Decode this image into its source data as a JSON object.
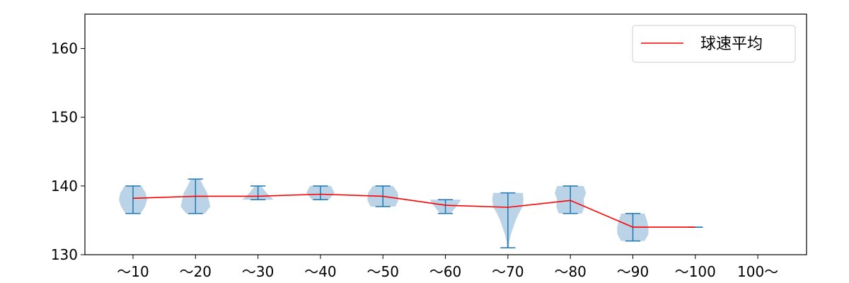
{
  "chart_data": {
    "type": "violin",
    "categories": [
      "〜10",
      "〜20",
      "〜30",
      "〜40",
      "〜50",
      "〜60",
      "〜70",
      "〜80",
      "〜90",
      "〜100",
      "100〜"
    ],
    "ylim": [
      130,
      165
    ],
    "yticks": [
      130,
      140,
      150,
      160
    ],
    "grid": false,
    "legend_position": "top-right",
    "series": [
      {
        "name": "球速平均",
        "kind": "line",
        "color": "#ff0000",
        "values": [
          138.2,
          138.5,
          138.5,
          138.8,
          138.5,
          137.2,
          136.9,
          137.9,
          134.0,
          134.0,
          null
        ]
      }
    ],
    "violins": [
      {
        "category": "〜10",
        "min": 136,
        "max": 140,
        "mean": 138.2,
        "width": 0.45,
        "shape": [
          0.55,
          0.85,
          1.0,
          0.9,
          0.6
        ]
      },
      {
        "category": "〜20",
        "min": 136,
        "max": 141,
        "mean": 138.5,
        "width": 0.5,
        "shape": [
          0.6,
          0.95,
          0.85,
          0.75,
          0.5,
          0.3
        ]
      },
      {
        "category": "〜30",
        "min": 138,
        "max": 140,
        "mean": 138.5,
        "width": 0.5,
        "shape": [
          1.0,
          0.55,
          0.2
        ]
      },
      {
        "category": "〜40",
        "min": 138,
        "max": 140,
        "mean": 138.8,
        "width": 0.45,
        "shape": [
          0.6,
          1.0,
          0.75
        ]
      },
      {
        "category": "〜50",
        "min": 137,
        "max": 140,
        "mean": 138.5,
        "width": 0.5,
        "shape": [
          0.8,
          1.0,
          0.95,
          0.65
        ]
      },
      {
        "category": "〜60",
        "min": 136,
        "max": 138,
        "mean": 137.2,
        "width": 0.5,
        "shape": [
          0.35,
          0.7,
          1.0
        ]
      },
      {
        "category": "〜70",
        "min": 131,
        "max": 139,
        "mean": 136.9,
        "width": 0.5,
        "shape": [
          0.05,
          0.1,
          0.2,
          0.35,
          0.5,
          0.7,
          0.95,
          1.0,
          0.95
        ]
      },
      {
        "category": "〜80",
        "min": 136,
        "max": 140,
        "mean": 137.9,
        "width": 0.5,
        "shape": [
          0.75,
          0.9,
          0.85,
          1.0,
          0.85
        ]
      },
      {
        "category": "〜90",
        "min": 132,
        "max": 136,
        "mean": 134.0,
        "width": 0.5,
        "shape": [
          0.75,
          1.0,
          1.0,
          0.9,
          0.75
        ]
      },
      {
        "category": "〜100",
        "min": 134,
        "max": 134,
        "mean": 134.0,
        "width": 0.25,
        "shape": [
          1.0
        ]
      }
    ],
    "colors": {
      "violin_fill": "#a9c8e0",
      "violin_line": "#1f77b4",
      "mean_line": "#ff0000"
    }
  }
}
